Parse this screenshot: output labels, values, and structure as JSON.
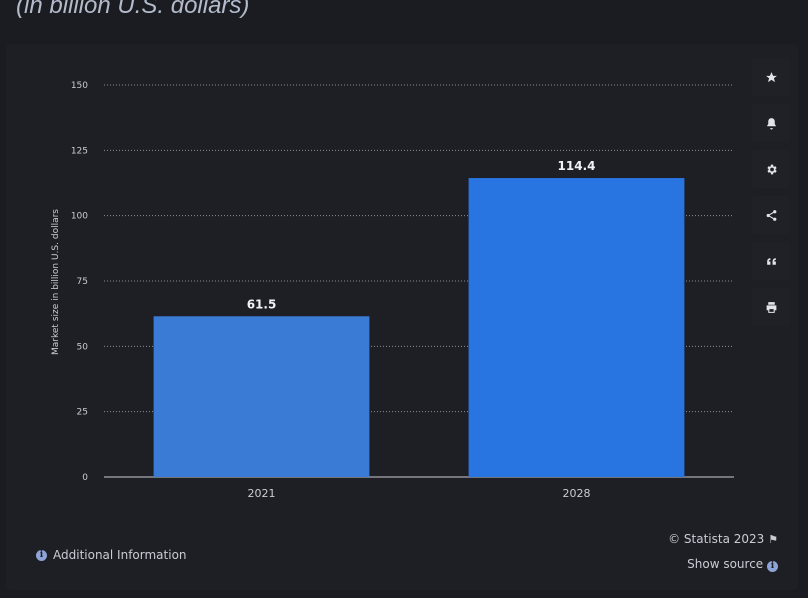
{
  "header": {
    "subtitle": "(in billion U.S. dollars)"
  },
  "chart_data": {
    "type": "bar",
    "categories": [
      "2021",
      "2028"
    ],
    "values": [
      61.5,
      114.4
    ],
    "data_labels": [
      "61.5",
      "114.4"
    ],
    "ylabel": "Market size in billion U.S. dollars",
    "ylim": [
      0,
      150
    ],
    "yticks": [
      0,
      25,
      50,
      75,
      100,
      125,
      150
    ],
    "grid": true,
    "bar_colors": [
      "#3a7bd5",
      "#2874e0"
    ]
  },
  "toolbar": {
    "items": [
      {
        "name": "star-icon"
      },
      {
        "name": "bell-icon"
      },
      {
        "name": "gear-icon"
      },
      {
        "name": "share-icon"
      },
      {
        "name": "quote-icon"
      },
      {
        "name": "print-icon"
      }
    ]
  },
  "footer": {
    "copyright": "© Statista 2023",
    "show_source": "Show source",
    "additional_info": "Additional Information"
  }
}
